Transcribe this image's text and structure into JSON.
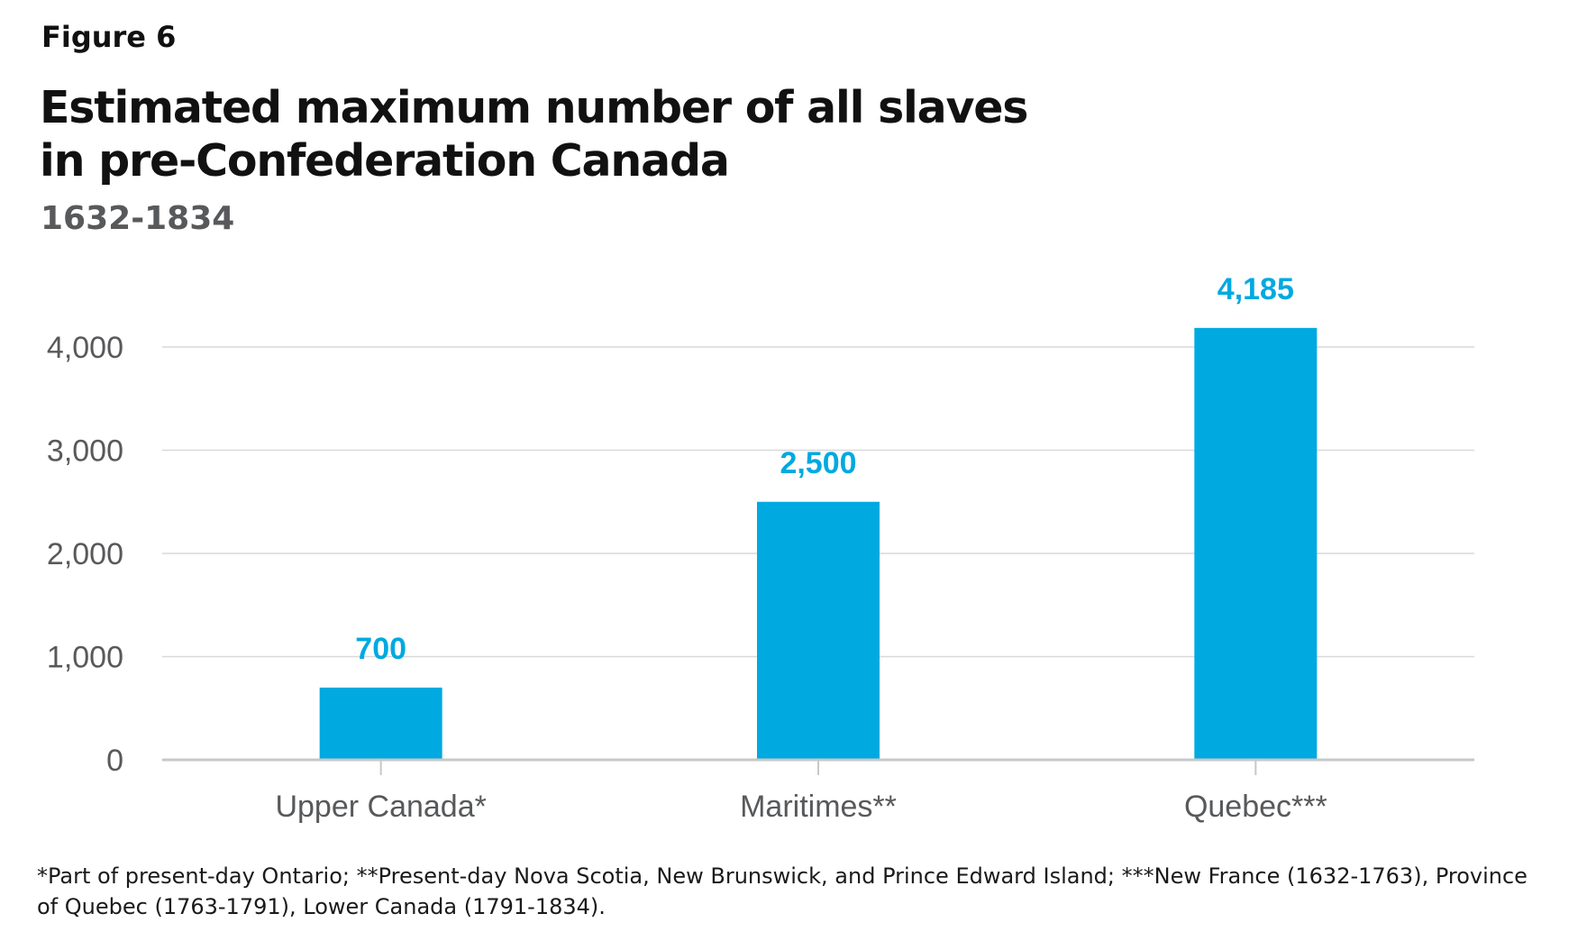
{
  "figure_label": "Figure 6",
  "chart_data": {
    "type": "bar",
    "title": "Estimated maximum number of all slaves in pre-Confederation Canada",
    "title_lines": [
      "Estimated maximum number of all slaves",
      "in pre-Confederation Canada"
    ],
    "subtitle": "1632-1834",
    "categories": [
      "Upper Canada*",
      "Maritimes**",
      "Quebec***"
    ],
    "values": [
      700,
      2500,
      4185
    ],
    "data_labels": [
      "700",
      "2,500",
      "4,185"
    ],
    "xlabel": "",
    "ylabel": "",
    "ylim": [
      0,
      4000
    ],
    "yticks": [
      0,
      1000,
      2000,
      3000,
      4000
    ],
    "ytick_labels": [
      "0",
      "1,000",
      "2,000",
      "3,000",
      "4,000"
    ],
    "grid": "horizontal",
    "legend": "none",
    "colors": {
      "bar": "#00a9e0",
      "data_label": "#00a9e0",
      "gridline": "#d9d9d9",
      "axis": "#c8c8c8",
      "tick_label": "#58595b"
    }
  },
  "footnote": "*Part of present-day Ontario; **Present-day Nova Scotia, New Brunswick, and Prince Edward Island; ***New France (1632-1763), Province of Quebec (1763-1791), Lower Canada (1791-1834)."
}
